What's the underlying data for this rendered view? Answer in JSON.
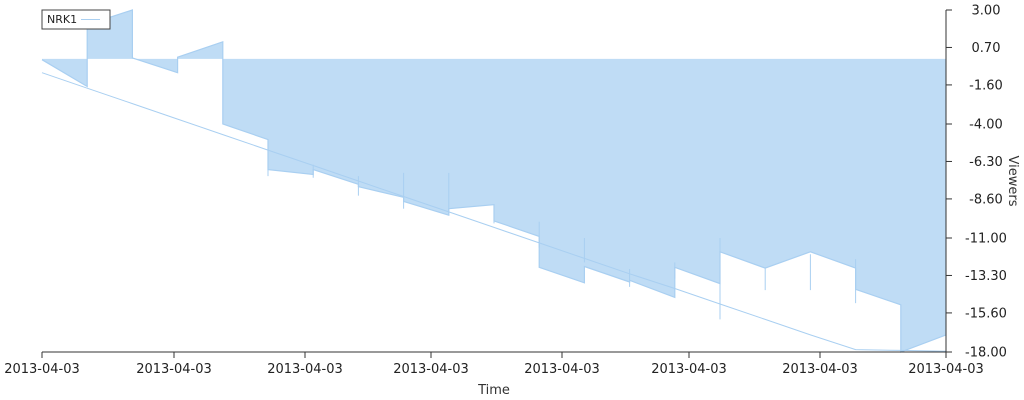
{
  "chart_data": {
    "type": "area",
    "xlabel": "Time",
    "ylabel": "Viewers",
    "x_tick_labels": [
      "2013-04-03",
      "2013-04-03",
      "2013-04-03",
      "2013-04-03",
      "2013-04-03",
      "2013-04-03",
      "2013-04-03",
      "2013-04-03"
    ],
    "y_ticks": [
      3.0,
      0.7,
      -1.6,
      -4.0,
      -6.3,
      -8.6,
      -11.0,
      -13.3,
      -15.6,
      -18.0
    ],
    "y_tick_labels": [
      "3.00",
      "0.70",
      "-1.60",
      "-4.00",
      "-6.30",
      "-8.60",
      "-11.00",
      "-13.30",
      "-15.60",
      "-18.00"
    ],
    "ylim": [
      -18.0,
      3.0
    ],
    "y_axis_side": "right",
    "legend_position": "top-left",
    "series": [
      {
        "name": "NRK1",
        "color": "#a9cff1",
        "fill": "#bfdcf5",
        "baseline": 0.0,
        "points": [
          [
            0.0,
            -0.05
          ],
          [
            0.05,
            -1.7
          ],
          [
            0.05,
            2.1
          ],
          [
            0.1,
            3.0
          ],
          [
            0.1,
            0.05
          ],
          [
            0.15,
            -0.85
          ],
          [
            0.15,
            0.1
          ],
          [
            0.2,
            1.05
          ],
          [
            0.2,
            -4.0
          ],
          [
            0.25,
            -4.95
          ],
          [
            0.25,
            -6.8
          ],
          [
            0.3,
            -7.1
          ],
          [
            0.3,
            -6.8
          ],
          [
            0.35,
            -7.7
          ],
          [
            0.35,
            -7.85
          ],
          [
            0.4,
            -8.5
          ],
          [
            0.4,
            -8.75
          ],
          [
            0.45,
            -9.6
          ],
          [
            0.45,
            -9.2
          ],
          [
            0.5,
            -8.95
          ],
          [
            0.5,
            -9.95
          ],
          [
            0.55,
            -10.9
          ],
          [
            0.55,
            -12.8
          ],
          [
            0.6,
            -13.75
          ],
          [
            0.6,
            -12.75
          ],
          [
            0.65,
            -13.7
          ],
          [
            0.65,
            -13.6
          ],
          [
            0.7,
            -14.65
          ],
          [
            0.7,
            -12.8
          ],
          [
            0.75,
            -13.8
          ],
          [
            0.75,
            -11.85
          ],
          [
            0.8,
            -12.85
          ],
          [
            0.85,
            -11.85
          ],
          [
            0.9,
            -12.85
          ],
          [
            0.9,
            -14.15
          ],
          [
            0.95,
            -15.1
          ],
          [
            0.95,
            -18.0
          ],
          [
            1.0,
            -16.95
          ]
        ],
        "lower_points": [
          [
            0.0,
            -0.85
          ],
          [
            0.05,
            -1.8
          ],
          [
            0.1,
            -2.75
          ],
          [
            0.15,
            -3.7
          ],
          [
            0.2,
            -4.65
          ],
          [
            0.25,
            -5.6
          ],
          [
            0.3,
            -6.55
          ],
          [
            0.35,
            -7.5
          ],
          [
            0.4,
            -8.45
          ],
          [
            0.45,
            -9.4
          ],
          [
            0.5,
            -10.35
          ],
          [
            0.55,
            -11.3
          ],
          [
            0.6,
            -12.25
          ],
          [
            0.65,
            -13.2
          ],
          [
            0.7,
            -14.1
          ],
          [
            0.75,
            -15.05
          ],
          [
            0.8,
            -16.0
          ],
          [
            0.85,
            -16.95
          ],
          [
            0.9,
            -17.85
          ],
          [
            0.95,
            -17.9
          ],
          [
            1.0,
            -17.95
          ]
        ],
        "spikes": [
          [
            0.25,
            -6.3,
            -7.2
          ],
          [
            0.3,
            -6.5,
            -7.3
          ],
          [
            0.35,
            -7.2,
            -8.4
          ],
          [
            0.4,
            -7.0,
            -9.2
          ],
          [
            0.45,
            -7.0,
            -9.6
          ],
          [
            0.5,
            -9.0,
            -10.1
          ],
          [
            0.55,
            -10.0,
            -11.6
          ],
          [
            0.6,
            -11.0,
            -12.5
          ],
          [
            0.65,
            -12.9,
            -14.0
          ],
          [
            0.7,
            -12.5,
            -13.5
          ],
          [
            0.75,
            -11.0,
            -16.0
          ],
          [
            0.8,
            -12.8,
            -14.2
          ],
          [
            0.85,
            -12.0,
            -14.2
          ],
          [
            0.9,
            -12.3,
            -15.0
          ]
        ]
      }
    ]
  }
}
